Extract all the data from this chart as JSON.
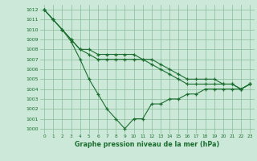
{
  "xlabel": "Graphe pression niveau de la mer (hPa)",
  "xlim": [
    -0.5,
    23.5
  ],
  "ylim": [
    999.5,
    1012.5
  ],
  "yticks": [
    1000,
    1001,
    1002,
    1003,
    1004,
    1005,
    1006,
    1007,
    1008,
    1009,
    1010,
    1011,
    1012
  ],
  "xticks": [
    0,
    1,
    2,
    3,
    4,
    5,
    6,
    7,
    8,
    9,
    10,
    11,
    12,
    13,
    14,
    15,
    16,
    17,
    18,
    19,
    20,
    21,
    22,
    23
  ],
  "bg_color": "#cce8d8",
  "grid_color": "#88bb99",
  "line_color": "#1a6e2e",
  "line1": [
    1012,
    1011,
    1010,
    1009,
    1008,
    1008,
    1007.5,
    1007.5,
    1007.5,
    1007.5,
    1007.5,
    1007,
    1007,
    1006.5,
    1006,
    1005.5,
    1005,
    1005,
    1005,
    1005,
    1004.5,
    1004.5,
    1004,
    1004.5
  ],
  "line2": [
    1012,
    1011,
    1010,
    1009,
    1008,
    1007.5,
    1007,
    1007,
    1007,
    1007,
    1007,
    1007,
    1006.5,
    1006,
    1005.5,
    1005,
    1004.5,
    1004.5,
    1004.5,
    1004.5,
    1004.5,
    1004.5,
    1004,
    1004.5
  ],
  "line3": [
    1012,
    1011,
    1010,
    1008.8,
    1007,
    1005,
    1003.5,
    1002,
    1001,
    1000,
    1001,
    1001,
    1002.5,
    1002.5,
    1003,
    1003,
    1003.5,
    1003.5,
    1004,
    1004,
    1004,
    1004,
    1004,
    1004.5
  ]
}
